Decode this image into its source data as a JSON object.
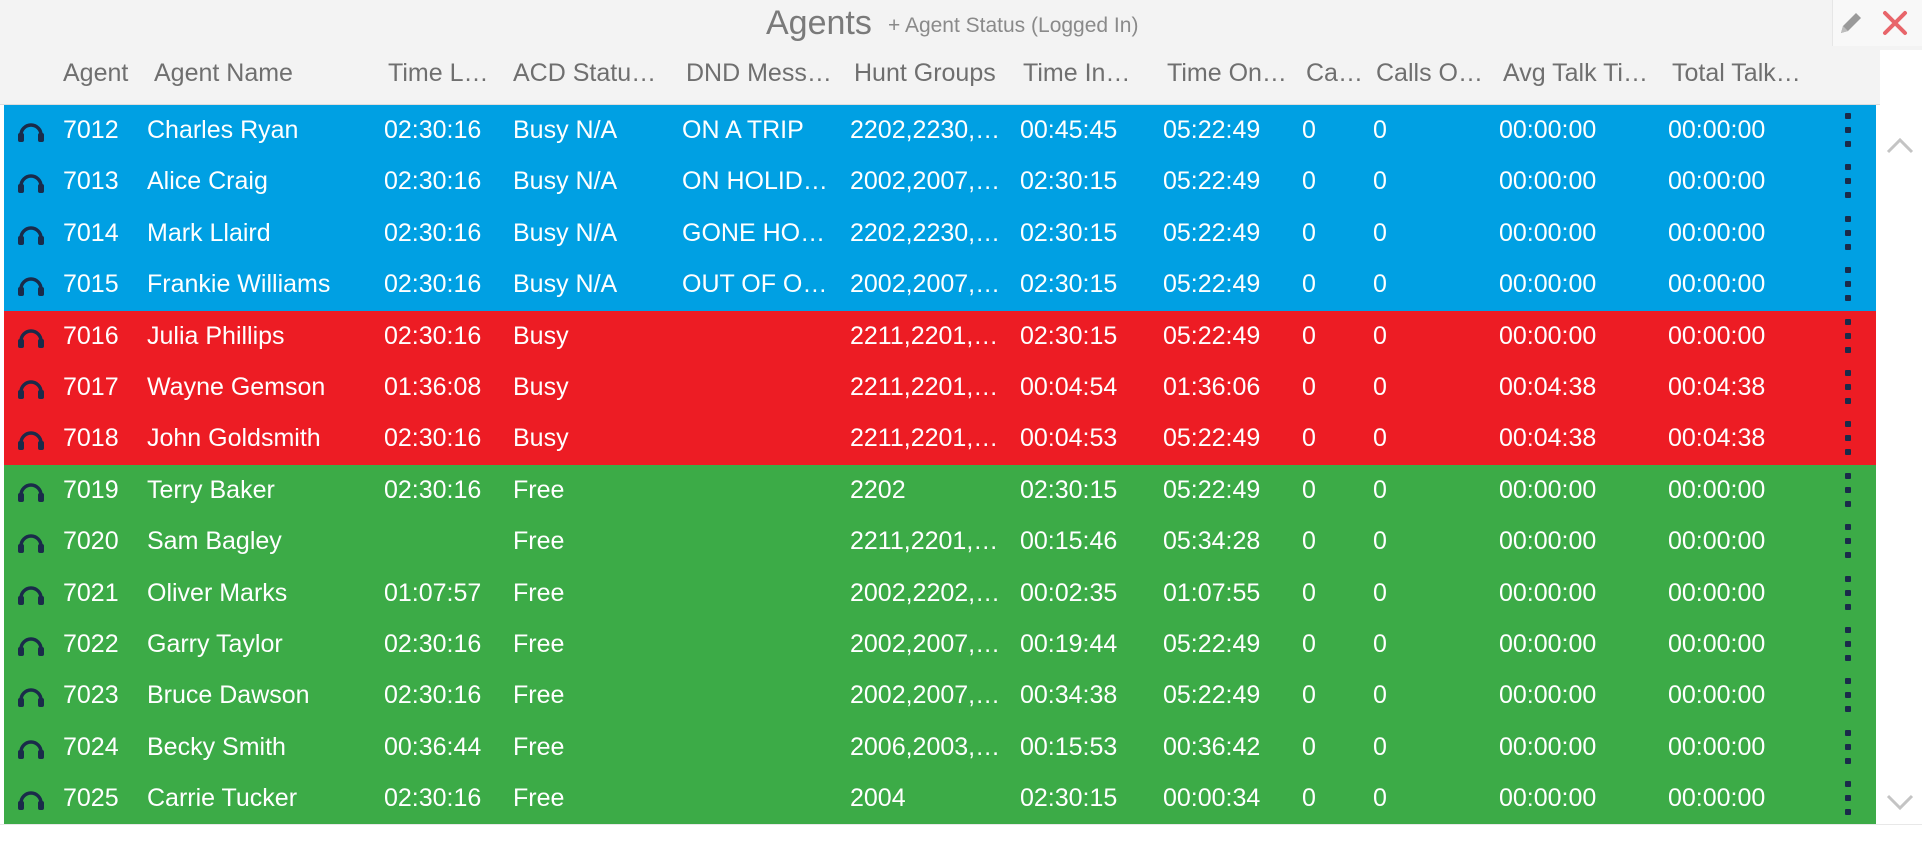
{
  "window": {
    "title": "Agents",
    "subtitle": "+ Agent Status (Logged In)",
    "edit_icon": "pencil-icon",
    "close_icon": "close-icon",
    "close_color": "#e8656a"
  },
  "colors": {
    "busy_na": "#00a0e3",
    "busy": "#ed1c24",
    "free": "#3cab47",
    "icon": "#1a2b4a"
  },
  "columns": [
    "Agent",
    "Agent Name",
    "Time L…",
    "ACD Statu…",
    "DND Mess…",
    "Hunt Groups",
    "Time In…",
    "Time On…",
    "Ca…",
    "Calls O…",
    "Avg Talk Ti…",
    "Total Talk…"
  ],
  "rows": [
    {
      "status_group": "busy_na",
      "icon": "headset-icon",
      "cells": [
        "7012",
        "Charles Ryan",
        "02:30:16",
        "Busy N/A",
        "ON A TRIP",
        "2202,2230,…",
        "00:45:45",
        "05:22:49",
        "0",
        "0",
        "00:00:00",
        "00:00:00"
      ]
    },
    {
      "status_group": "busy_na",
      "icon": "headset-icon",
      "cells": [
        "7013",
        "Alice Craig",
        "02:30:16",
        "Busy N/A",
        "ON HOLID…",
        "2002,2007,…",
        "02:30:15",
        "05:22:49",
        "0",
        "0",
        "00:00:00",
        "00:00:00"
      ]
    },
    {
      "status_group": "busy_na",
      "icon": "headset-icon",
      "cells": [
        "7014",
        "Mark Llaird",
        "02:30:16",
        "Busy N/A",
        "GONE HO…",
        "2202,2230,…",
        "02:30:15",
        "05:22:49",
        "0",
        "0",
        "00:00:00",
        "00:00:00"
      ]
    },
    {
      "status_group": "busy_na",
      "icon": "headset-icon",
      "cells": [
        "7015",
        "Frankie Williams",
        "02:30:16",
        "Busy N/A",
        "OUT OF O…",
        "2002,2007,…",
        "02:30:15",
        "05:22:49",
        "0",
        "0",
        "00:00:00",
        "00:00:00"
      ]
    },
    {
      "status_group": "busy",
      "icon": "headset-icon",
      "cells": [
        "7016",
        "Julia Phillips",
        "02:30:16",
        "Busy",
        "",
        "2211,2201,…",
        "02:30:15",
        "05:22:49",
        "0",
        "0",
        "00:00:00",
        "00:00:00"
      ]
    },
    {
      "status_group": "busy",
      "icon": "headset-icon",
      "cells": [
        "7017",
        "Wayne Gemson",
        "01:36:08",
        "Busy",
        "",
        "2211,2201,…",
        "00:04:54",
        "01:36:06",
        "0",
        "0",
        "00:04:38",
        "00:04:38"
      ]
    },
    {
      "status_group": "busy",
      "icon": "headset-icon",
      "cells": [
        "7018",
        "John Goldsmith",
        "02:30:16",
        "Busy",
        "",
        "2211,2201,…",
        "00:04:53",
        "05:22:49",
        "0",
        "0",
        "00:04:38",
        "00:04:38"
      ]
    },
    {
      "status_group": "free",
      "icon": "headset-icon",
      "cells": [
        "7019",
        "Terry Baker",
        "02:30:16",
        "Free",
        "",
        "2202",
        "02:30:15",
        "05:22:49",
        "0",
        "0",
        "00:00:00",
        "00:00:00"
      ]
    },
    {
      "status_group": "free",
      "icon": "headset-icon",
      "cells": [
        "7020",
        "Sam Bagley",
        "",
        "Free",
        "",
        "2211,2201,…",
        "00:15:46",
        "05:34:28",
        "0",
        "0",
        "00:00:00",
        "00:00:00"
      ]
    },
    {
      "status_group": "free",
      "icon": "headset-icon",
      "cells": [
        "7021",
        "Oliver Marks",
        "01:07:57",
        "Free",
        "",
        "2002,2202,…",
        "00:02:35",
        "01:07:55",
        "0",
        "0",
        "00:00:00",
        "00:00:00"
      ]
    },
    {
      "status_group": "free",
      "icon": "headset-icon",
      "cells": [
        "7022",
        "Garry Taylor",
        "02:30:16",
        "Free",
        "",
        "2002,2007,…",
        "00:19:44",
        "05:22:49",
        "0",
        "0",
        "00:00:00",
        "00:00:00"
      ]
    },
    {
      "status_group": "free",
      "icon": "headset-icon",
      "cells": [
        "7023",
        "Bruce Dawson",
        "02:30:16",
        "Free",
        "",
        "2002,2007,…",
        "00:34:38",
        "05:22:49",
        "0",
        "0",
        "00:00:00",
        "00:00:00"
      ]
    },
    {
      "status_group": "free",
      "icon": "headset-icon",
      "cells": [
        "7024",
        "Becky Smith",
        "00:36:44",
        "Free",
        "",
        "2006,2003,…",
        "00:15:53",
        "00:36:42",
        "0",
        "0",
        "00:00:00",
        "00:00:00"
      ]
    },
    {
      "status_group": "free",
      "icon": "headset-icon",
      "cells": [
        "7025",
        "Carrie Tucker",
        "02:30:16",
        "Free",
        "",
        "2004",
        "02:30:15",
        "00:00:34",
        "0",
        "0",
        "00:00:00",
        "00:00:00"
      ]
    }
  ],
  "scrollbar": {
    "up_icon": "chevron-up-icon",
    "down_icon": "chevron-down-icon"
  }
}
